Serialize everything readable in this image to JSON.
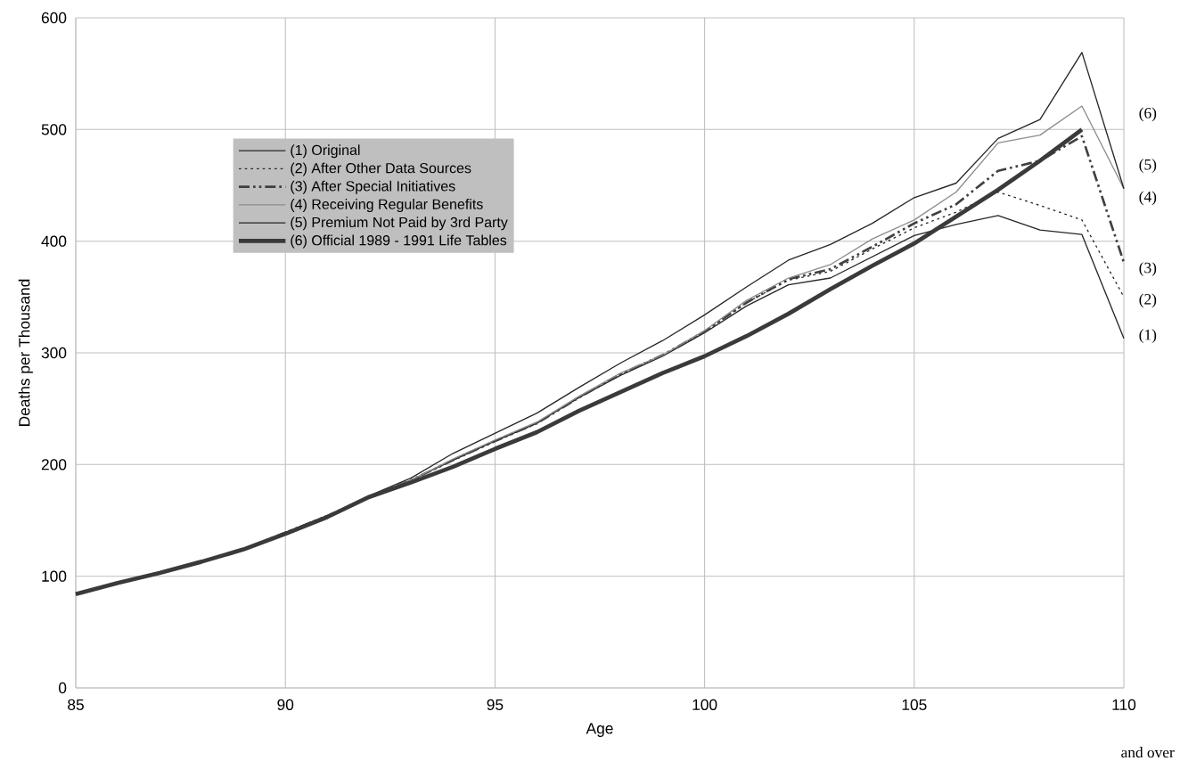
{
  "chart_data": {
    "type": "line",
    "xlabel": "Age",
    "ylabel": "Deaths per Thousand",
    "x": [
      85,
      86,
      87,
      88,
      89,
      90,
      91,
      92,
      93,
      94,
      95,
      96,
      97,
      98,
      99,
      100,
      101,
      102,
      103,
      104,
      105,
      106,
      107,
      108,
      109,
      110
    ],
    "xlim": [
      85,
      110
    ],
    "xticks": [
      85,
      90,
      95,
      100,
      105,
      110
    ],
    "ylim": [
      0,
      600
    ],
    "yticks": [
      0,
      100,
      200,
      300,
      400,
      500,
      600
    ],
    "grid": true,
    "legend": "top left",
    "marker": "none",
    "series": [
      {
        "name": "(1) Original",
        "color": "#262626",
        "line_style": "solid",
        "values": [
          84,
          94,
          103,
          113,
          124,
          139,
          154,
          171,
          186,
          204,
          221,
          237,
          260,
          280,
          297,
          318,
          342,
          361,
          367,
          386,
          405,
          415,
          423,
          410,
          406,
          313
        ]
      },
      {
        "name": "(2) After Other Data Sources",
        "color": "#262626",
        "line_style": "dotted",
        "values": [
          84,
          94,
          103,
          113,
          124,
          139,
          154,
          171,
          186,
          204,
          221,
          237,
          260,
          281,
          298,
          319,
          345,
          365,
          373,
          393,
          412,
          426,
          444,
          432,
          419,
          350
        ]
      },
      {
        "name": "(3) After Special Initiatives",
        "color": "#404040",
        "line_style": "dashdot",
        "values": [
          84,
          94,
          103,
          113,
          124,
          139,
          154,
          171,
          186,
          204,
          221,
          237,
          260,
          281,
          298,
          319,
          345,
          366,
          375,
          395,
          416,
          433,
          463,
          472,
          494,
          381
        ]
      },
      {
        "name": "(4)  Receiving Regular Benefits",
        "color": "#8c8c8c",
        "line_style": "solid",
        "values": [
          84,
          94,
          103,
          113,
          125,
          139,
          154,
          171,
          186,
          205,
          222,
          238,
          261,
          282,
          298,
          320,
          347,
          367,
          379,
          402,
          419,
          444,
          488,
          495,
          521,
          447
        ]
      },
      {
        "name": "(5) Premium Not Paid by 3rd Party",
        "color": "#262626",
        "line_style": "solid",
        "values": [
          84,
          94,
          103,
          113,
          124,
          139,
          154,
          172,
          188,
          210,
          228,
          246,
          269,
          291,
          311,
          334,
          359,
          383,
          397,
          416,
          439,
          452,
          492,
          509,
          569,
          447
        ]
      },
      {
        "name": "(6) Official 1989 - 1991 Life Tables",
        "color": "#3a3a3a",
        "line_style": "solid",
        "values": [
          84,
          94,
          103,
          113,
          124,
          138,
          153,
          171,
          184,
          198,
          214,
          229,
          248,
          265,
          282,
          297,
          315,
          335,
          357,
          378,
          398,
          422,
          446,
          472,
          500,
          null
        ]
      }
    ],
    "annotations": [
      "(6)",
      "(5)",
      "(4)",
      "(3)",
      "(2)",
      "(1)",
      "and over"
    ]
  }
}
